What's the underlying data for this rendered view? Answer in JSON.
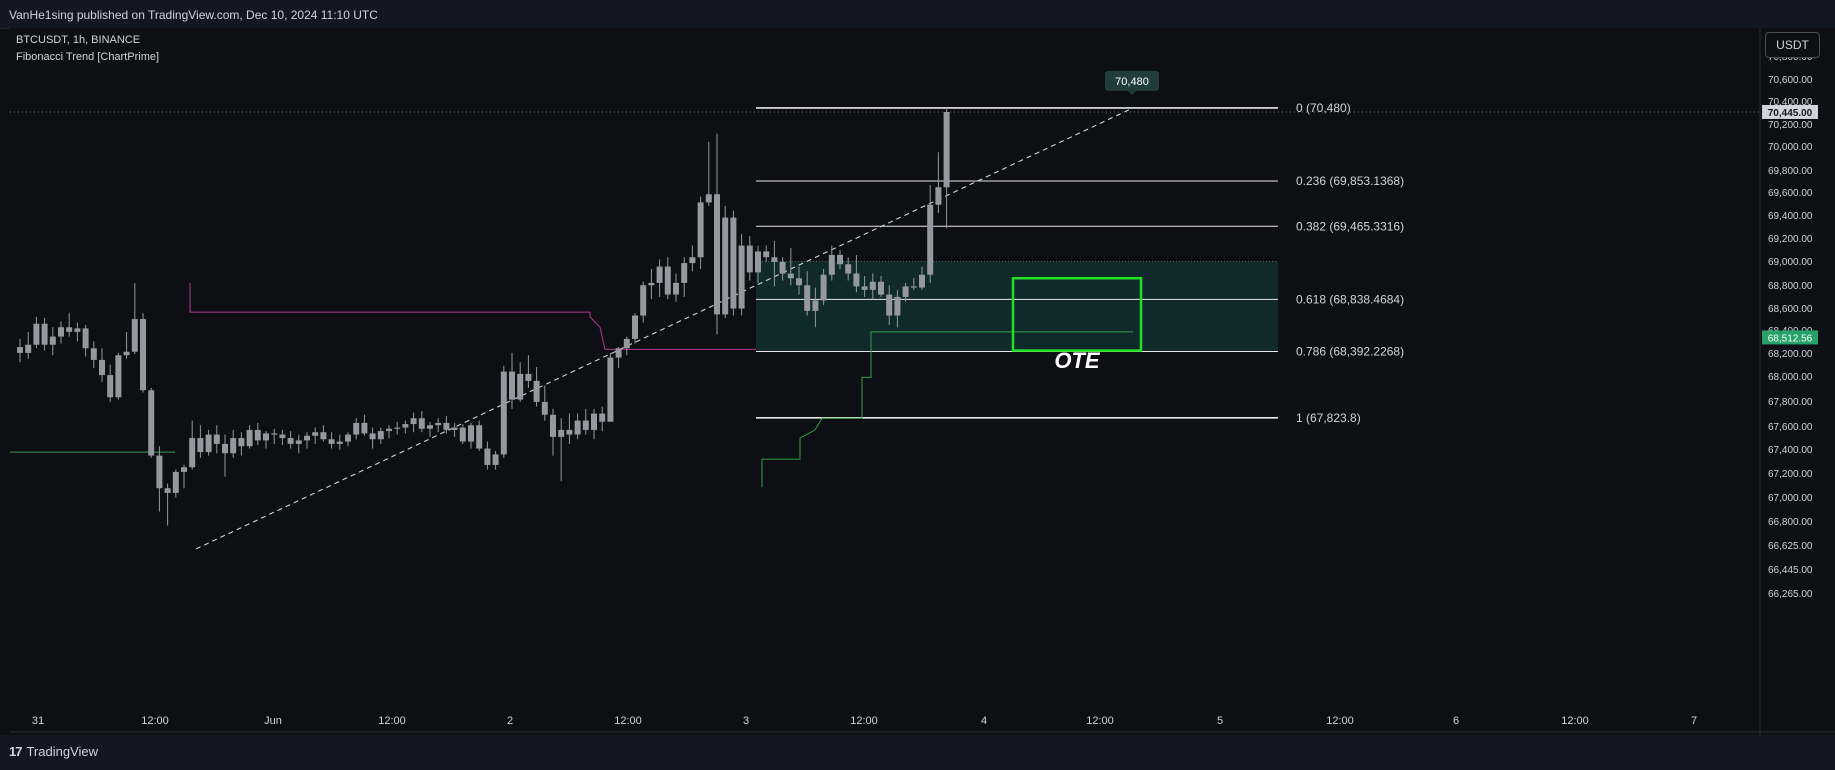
{
  "header": {
    "published": "VanHe1sing published on TradingView.com, Dec 10, 2024 11:10 UTC"
  },
  "legend": {
    "symbol": "BTCUSDT, 1h, BINANCE",
    "indicator": "Fibonacci Trend [ChartPrime]"
  },
  "currency_button": "USDT",
  "footer": {
    "brand": "TradingView"
  },
  "colors": {
    "background": "#0e0f14",
    "candle": "#9598a1",
    "highlight_box": "#22e022",
    "fib_zone": "#123332",
    "trend_green": "#2ea043",
    "trend_pink": "#b03a8c",
    "price_tag_current": "#26a269",
    "price_tag_high": "#1f3d3d"
  },
  "chart_data": {
    "type": "candlestick",
    "x_ticks": [
      "31",
      "12:00",
      "Jun",
      "12:00",
      "2",
      "12:00",
      "3",
      "12:00",
      "4",
      "12:00",
      "5",
      "12:00",
      "6",
      "12:00",
      "7"
    ],
    "y_ticks": [
      "70,800.00",
      "70,600.00",
      "70,400.00",
      "70,200.00",
      "70,000.00",
      "69,800.00",
      "69,600.00",
      "69,400.00",
      "69,200.00",
      "69,000.00",
      "68,800.00",
      "68,600.00",
      "68,400.00",
      "68,200.00",
      "68,000.00",
      "67,800.00",
      "67,600.00",
      "67,400.00",
      "67,200.00",
      "67,000.00",
      "66,800.00",
      "66,625.00",
      "66,445.00",
      "66,265.00"
    ],
    "price_tags": {
      "high_label": "70,480",
      "hidden_tag": "70,445.00",
      "current": "68,512.56"
    },
    "fib_levels": [
      {
        "label": "0 (70,480)",
        "price": 70480
      },
      {
        "label": "0.236 (69,853.1368)",
        "price": 69853.1368
      },
      {
        "label": "0.382 (69,465.3316)",
        "price": 69465.3316
      },
      {
        "label": "0.618 (68,838.4684)",
        "price": 68838.4684
      },
      {
        "label": "0.786 (68,392.2268)",
        "price": 68392.2268
      },
      {
        "label": "1 (67,823.8)",
        "price": 67823.8
      }
    ],
    "annotation": "OTE",
    "candles": [
      [
        68430,
        68500,
        68300,
        68380
      ],
      [
        68380,
        68560,
        68330,
        68450
      ],
      [
        68450,
        68690,
        68420,
        68630
      ],
      [
        68630,
        68680,
        68400,
        68450
      ],
      [
        68450,
        68600,
        68360,
        68520
      ],
      [
        68520,
        68650,
        68460,
        68600
      ],
      [
        68600,
        68720,
        68520,
        68560
      ],
      [
        68560,
        68640,
        68480,
        68590
      ],
      [
        68590,
        68620,
        68350,
        68420
      ],
      [
        68420,
        68480,
        68250,
        68320
      ],
      [
        68320,
        68420,
        68130,
        68190
      ],
      [
        68190,
        68280,
        67960,
        68000
      ],
      [
        68000,
        68380,
        67980,
        68360
      ],
      [
        68360,
        68560,
        68330,
        68390
      ],
      [
        68390,
        68980,
        68370,
        68670
      ],
      [
        68670,
        68720,
        68040,
        68060
      ],
      [
        68060,
        68080,
        67480,
        67500
      ],
      [
        67500,
        67580,
        67020,
        67220
      ],
      [
        67220,
        67260,
        66900,
        67180
      ],
      [
        67180,
        67380,
        67140,
        67360
      ],
      [
        67360,
        67420,
        67220,
        67400
      ],
      [
        67400,
        67800,
        67380,
        67650
      ],
      [
        67650,
        67760,
        67480,
        67530
      ],
      [
        67530,
        67720,
        67500,
        67680
      ],
      [
        67680,
        67760,
        67520,
        67600
      ],
      [
        67600,
        67680,
        67320,
        67520
      ],
      [
        67520,
        67720,
        67480,
        67650
      ],
      [
        67650,
        67700,
        67500,
        67580
      ],
      [
        67580,
        67760,
        67560,
        67720
      ],
      [
        67720,
        67780,
        67590,
        67630
      ],
      [
        67630,
        67710,
        67560,
        67690
      ],
      [
        67690,
        67730,
        67600,
        67680
      ],
      [
        67680,
        67720,
        67590,
        67650
      ],
      [
        67650,
        67710,
        67560,
        67600
      ],
      [
        67600,
        67680,
        67520,
        67630
      ],
      [
        67630,
        67700,
        67560,
        67670
      ],
      [
        67670,
        67740,
        67600,
        67700
      ],
      [
        67700,
        67760,
        67620,
        67640
      ],
      [
        67640,
        67700,
        67560,
        67600
      ],
      [
        67600,
        67680,
        67550,
        67620
      ],
      [
        67620,
        67700,
        67580,
        67680
      ],
      [
        67680,
        67820,
        67640,
        67780
      ],
      [
        67780,
        67850,
        67670,
        67690
      ],
      [
        67690,
        67740,
        67560,
        67640
      ],
      [
        67640,
        67740,
        67600,
        67710
      ],
      [
        67710,
        67760,
        67650,
        67730
      ],
      [
        67730,
        67790,
        67680,
        67740
      ],
      [
        67740,
        67800,
        67690,
        67770
      ],
      [
        67770,
        67870,
        67700,
        67820
      ],
      [
        67820,
        67880,
        67700,
        67730
      ],
      [
        67730,
        67790,
        67660,
        67760
      ],
      [
        67760,
        67820,
        67700,
        67780
      ],
      [
        67780,
        67840,
        67690,
        67720
      ],
      [
        67720,
        67780,
        67660,
        67740
      ],
      [
        67740,
        67770,
        67600,
        67620
      ],
      [
        67620,
        67780,
        67560,
        67760
      ],
      [
        67760,
        67800,
        67540,
        67560
      ],
      [
        67560,
        67620,
        67380,
        67420
      ],
      [
        67420,
        67540,
        67380,
        67510
      ],
      [
        67510,
        68270,
        67480,
        68220
      ],
      [
        68220,
        68380,
        67900,
        67980
      ],
      [
        67980,
        68300,
        67960,
        68200
      ],
      [
        68200,
        68360,
        68080,
        68140
      ],
      [
        68140,
        68260,
        67920,
        67960
      ],
      [
        67960,
        68100,
        67800,
        67850
      ],
      [
        67850,
        67900,
        67500,
        67660
      ],
      [
        67660,
        67820,
        67280,
        67720
      ],
      [
        67720,
        67860,
        67600,
        67680
      ],
      [
        67680,
        67860,
        67640,
        67800
      ],
      [
        67800,
        67900,
        67680,
        67720
      ],
      [
        67720,
        67900,
        67640,
        67860
      ],
      [
        67860,
        67920,
        67710,
        67790
      ],
      [
        67790,
        68380,
        67800,
        68340
      ],
      [
        68340,
        68430,
        68250,
        68420
      ],
      [
        68420,
        68520,
        68360,
        68500
      ],
      [
        68500,
        68720,
        68460,
        68700
      ],
      [
        68700,
        68990,
        68640,
        68960
      ],
      [
        68960,
        69100,
        68840,
        68980
      ],
      [
        68980,
        69180,
        68860,
        69120
      ],
      [
        69120,
        69200,
        68840,
        68880
      ],
      [
        68880,
        69060,
        68820,
        68980
      ],
      [
        68980,
        69200,
        68860,
        69150
      ],
      [
        69150,
        69300,
        69080,
        69200
      ],
      [
        69200,
        69720,
        69100,
        69670
      ],
      [
        69670,
        70190,
        69640,
        69740
      ],
      [
        69740,
        70260,
        68540,
        68710
      ],
      [
        68710,
        69640,
        68680,
        69540
      ],
      [
        69540,
        69600,
        68700,
        68760
      ],
      [
        68760,
        69400,
        68700,
        69300
      ],
      [
        69300,
        69380,
        69000,
        69070
      ],
      [
        69070,
        69300,
        68980,
        69250
      ],
      [
        69250,
        69300,
        69160,
        69200
      ],
      [
        69200,
        69340,
        68950,
        69160
      ],
      [
        69160,
        69200,
        69000,
        69060
      ],
      [
        69060,
        69280,
        68960,
        69020
      ],
      [
        69020,
        69120,
        68880,
        68960
      ],
      [
        68960,
        69080,
        68700,
        68740
      ],
      [
        68740,
        68940,
        68600,
        68830
      ],
      [
        68830,
        69100,
        68790,
        69050
      ],
      [
        69050,
        69300,
        69000,
        69220
      ],
      [
        69220,
        69260,
        69100,
        69140
      ],
      [
        69140,
        69200,
        69000,
        69060
      ],
      [
        69060,
        69220,
        68900,
        68950
      ],
      [
        68950,
        69040,
        68860,
        68920
      ],
      [
        68920,
        69060,
        68840,
        68990
      ],
      [
        68990,
        69040,
        68860,
        68880
      ],
      [
        68880,
        68960,
        68620,
        68700
      ],
      [
        68700,
        68920,
        68600,
        68860
      ],
      [
        68860,
        68980,
        68820,
        68950
      ],
      [
        68950,
        69020,
        68920,
        68940
      ],
      [
        68940,
        69120,
        68920,
        69050
      ],
      [
        69050,
        69820,
        68980,
        69650
      ],
      [
        69650,
        70100,
        69580,
        69800
      ],
      [
        69800,
        70480,
        69450,
        70445
      ]
    ]
  }
}
